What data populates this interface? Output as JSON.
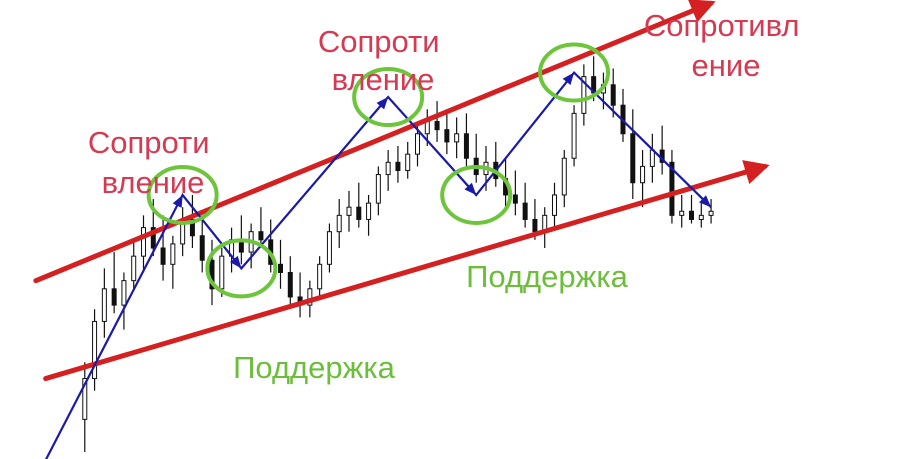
{
  "chart_data": {
    "type": "candlestick",
    "title": "",
    "xlabel": "",
    "ylabel": "",
    "grid": false,
    "legend": "none",
    "colors": {
      "trendline": "#d42020",
      "swing_path": "#1a1aa8",
      "candle": "#111111",
      "resistance_text": "#d63a52",
      "support_text": "#6cbe3a",
      "circle": "#6cc53a"
    },
    "xlim": [
      0,
      140
    ],
    "ylim": [
      0,
      100
    ],
    "candles": [
      {
        "t": 2,
        "o": 8,
        "h": 22,
        "l": 0,
        "c": 18
      },
      {
        "t": 4,
        "o": 18,
        "h": 35,
        "l": 15,
        "c": 32
      },
      {
        "t": 6,
        "o": 32,
        "h": 45,
        "l": 28,
        "c": 40
      },
      {
        "t": 8,
        "o": 40,
        "h": 49,
        "l": 34,
        "c": 36
      },
      {
        "t": 10,
        "o": 36,
        "h": 44,
        "l": 30,
        "c": 42
      },
      {
        "t": 12,
        "o": 42,
        "h": 52,
        "l": 40,
        "c": 48
      },
      {
        "t": 14,
        "o": 48,
        "h": 58,
        "l": 44,
        "c": 55
      },
      {
        "t": 16,
        "o": 55,
        "h": 62,
        "l": 48,
        "c": 50
      },
      {
        "t": 18,
        "o": 50,
        "h": 58,
        "l": 42,
        "c": 46
      },
      {
        "t": 20,
        "o": 46,
        "h": 53,
        "l": 40,
        "c": 51
      },
      {
        "t": 22,
        "o": 51,
        "h": 60,
        "l": 48,
        "c": 57
      },
      {
        "t": 24,
        "o": 57,
        "h": 63,
        "l": 50,
        "c": 53
      },
      {
        "t": 26,
        "o": 53,
        "h": 58,
        "l": 44,
        "c": 47
      },
      {
        "t": 28,
        "o": 47,
        "h": 52,
        "l": 36,
        "c": 40
      },
      {
        "t": 30,
        "o": 40,
        "h": 50,
        "l": 38,
        "c": 48
      },
      {
        "t": 32,
        "o": 48,
        "h": 55,
        "l": 44,
        "c": 52
      },
      {
        "t": 34,
        "o": 52,
        "h": 58,
        "l": 46,
        "c": 49
      },
      {
        "t": 36,
        "o": 49,
        "h": 56,
        "l": 45,
        "c": 54
      },
      {
        "t": 38,
        "o": 54,
        "h": 60,
        "l": 50,
        "c": 52
      },
      {
        "t": 40,
        "o": 52,
        "h": 57,
        "l": 44,
        "c": 46
      },
      {
        "t": 42,
        "o": 46,
        "h": 52,
        "l": 40,
        "c": 44
      },
      {
        "t": 44,
        "o": 44,
        "h": 48,
        "l": 36,
        "c": 38
      },
      {
        "t": 46,
        "o": 38,
        "h": 44,
        "l": 33,
        "c": 36
      },
      {
        "t": 48,
        "o": 36,
        "h": 42,
        "l": 33,
        "c": 40
      },
      {
        "t": 50,
        "o": 40,
        "h": 48,
        "l": 38,
        "c": 46
      },
      {
        "t": 52,
        "o": 46,
        "h": 56,
        "l": 44,
        "c": 54
      },
      {
        "t": 54,
        "o": 54,
        "h": 62,
        "l": 50,
        "c": 58
      },
      {
        "t": 56,
        "o": 58,
        "h": 64,
        "l": 54,
        "c": 60
      },
      {
        "t": 58,
        "o": 60,
        "h": 66,
        "l": 55,
        "c": 57
      },
      {
        "t": 60,
        "o": 57,
        "h": 63,
        "l": 53,
        "c": 61
      },
      {
        "t": 62,
        "o": 61,
        "h": 70,
        "l": 58,
        "c": 68
      },
      {
        "t": 64,
        "o": 68,
        "h": 74,
        "l": 64,
        "c": 71
      },
      {
        "t": 66,
        "o": 71,
        "h": 75,
        "l": 66,
        "c": 69
      },
      {
        "t": 68,
        "o": 69,
        "h": 76,
        "l": 67,
        "c": 73
      },
      {
        "t": 70,
        "o": 73,
        "h": 80,
        "l": 70,
        "c": 78
      },
      {
        "t": 72,
        "o": 78,
        "h": 84,
        "l": 75,
        "c": 81
      },
      {
        "t": 74,
        "o": 81,
        "h": 86,
        "l": 76,
        "c": 79
      },
      {
        "t": 76,
        "o": 79,
        "h": 84,
        "l": 73,
        "c": 76
      },
      {
        "t": 78,
        "o": 76,
        "h": 82,
        "l": 72,
        "c": 78
      },
      {
        "t": 80,
        "o": 78,
        "h": 83,
        "l": 70,
        "c": 72
      },
      {
        "t": 82,
        "o": 72,
        "h": 78,
        "l": 66,
        "c": 68
      },
      {
        "t": 84,
        "o": 68,
        "h": 75,
        "l": 64,
        "c": 71
      },
      {
        "t": 86,
        "o": 71,
        "h": 76,
        "l": 65,
        "c": 67
      },
      {
        "t": 88,
        "o": 67,
        "h": 72,
        "l": 60,
        "c": 63
      },
      {
        "t": 90,
        "o": 63,
        "h": 69,
        "l": 58,
        "c": 61
      },
      {
        "t": 92,
        "o": 61,
        "h": 66,
        "l": 55,
        "c": 57
      },
      {
        "t": 94,
        "o": 57,
        "h": 62,
        "l": 52,
        "c": 54
      },
      {
        "t": 96,
        "o": 54,
        "h": 60,
        "l": 50,
        "c": 58
      },
      {
        "t": 98,
        "o": 58,
        "h": 66,
        "l": 55,
        "c": 63
      },
      {
        "t": 100,
        "o": 63,
        "h": 74,
        "l": 60,
        "c": 72
      },
      {
        "t": 102,
        "o": 72,
        "h": 85,
        "l": 70,
        "c": 83
      },
      {
        "t": 104,
        "o": 83,
        "h": 95,
        "l": 80,
        "c": 92
      },
      {
        "t": 106,
        "o": 92,
        "h": 97,
        "l": 86,
        "c": 88
      },
      {
        "t": 108,
        "o": 88,
        "h": 93,
        "l": 84,
        "c": 90
      },
      {
        "t": 110,
        "o": 90,
        "h": 94,
        "l": 82,
        "c": 85
      },
      {
        "t": 112,
        "o": 85,
        "h": 89,
        "l": 76,
        "c": 78
      },
      {
        "t": 114,
        "o": 78,
        "h": 84,
        "l": 62,
        "c": 66
      },
      {
        "t": 116,
        "o": 66,
        "h": 74,
        "l": 60,
        "c": 70
      },
      {
        "t": 118,
        "o": 70,
        "h": 78,
        "l": 66,
        "c": 74
      },
      {
        "t": 120,
        "o": 74,
        "h": 80,
        "l": 68,
        "c": 71
      },
      {
        "t": 122,
        "o": 71,
        "h": 74,
        "l": 56,
        "c": 58
      },
      {
        "t": 124,
        "o": 58,
        "h": 63,
        "l": 55,
        "c": 59
      },
      {
        "t": 126,
        "o": 59,
        "h": 63,
        "l": 56,
        "c": 57
      },
      {
        "t": 128,
        "o": 57,
        "h": 61,
        "l": 55,
        "c": 58
      },
      {
        "t": 130,
        "o": 58,
        "h": 62,
        "l": 56,
        "c": 59
      }
    ],
    "trendlines": [
      {
        "role": "resistance",
        "from": [
          -8,
          42
        ],
        "to": [
          130,
          110
        ]
      },
      {
        "role": "support",
        "from": [
          -6,
          18
        ],
        "to": [
          141,
          70
        ]
      }
    ],
    "swing_path": [
      [
        -6,
        -2
      ],
      [
        22,
        63
      ],
      [
        34,
        45
      ],
      [
        64,
        87
      ],
      [
        82,
        63
      ],
      [
        102,
        93
      ],
      [
        130,
        60
      ]
    ],
    "circles": [
      {
        "at": [
          22,
          63
        ],
        "role": "resistance"
      },
      {
        "at": [
          34,
          45
        ],
        "role": "support"
      },
      {
        "at": [
          64,
          87
        ],
        "role": "resistance"
      },
      {
        "at": [
          82,
          63
        ],
        "role": "support"
      },
      {
        "at": [
          102,
          93
        ],
        "role": "resistance"
      }
    ],
    "annotations": [
      {
        "role": "resistance",
        "lines": [
          "Сопроти",
          "вление"
        ]
      },
      {
        "role": "support",
        "lines": [
          "Поддержка"
        ]
      },
      {
        "role": "resistance",
        "lines": [
          "Сопроти",
          "вление"
        ]
      },
      {
        "role": "support",
        "lines": [
          "Поддержка"
        ]
      },
      {
        "role": "resistance",
        "lines": [
          "Сопротивл",
          "ение"
        ]
      }
    ]
  }
}
